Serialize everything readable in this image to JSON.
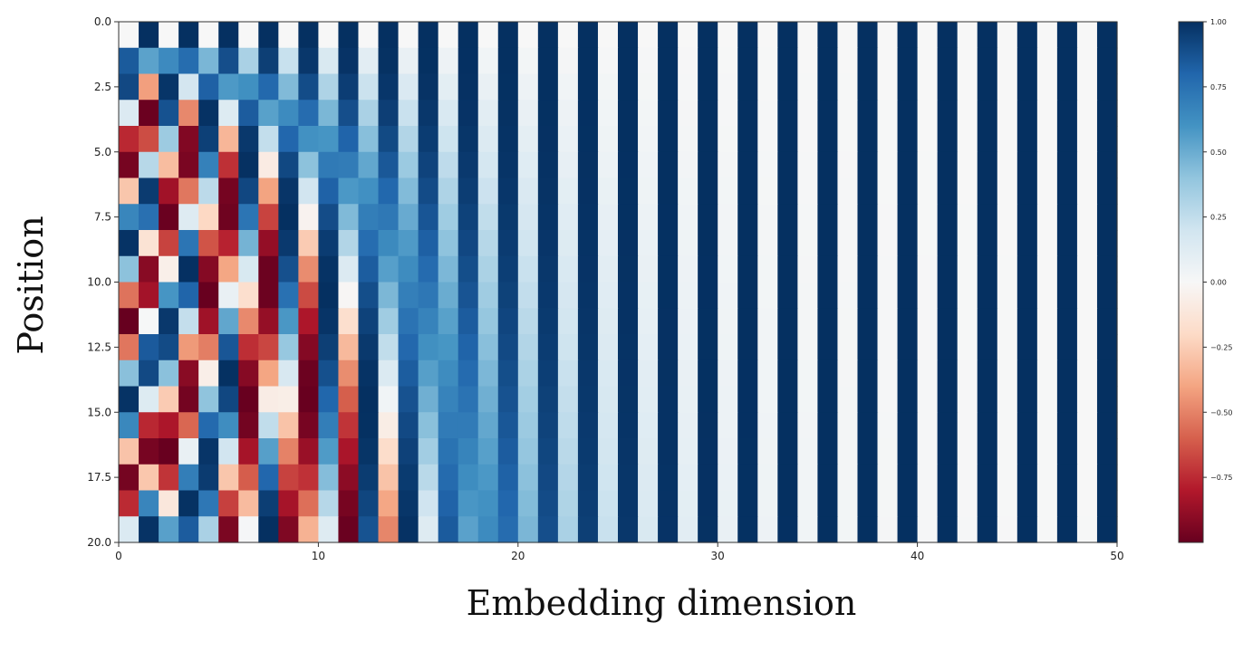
{
  "chart_data": {
    "type": "heatmap",
    "title": "",
    "xlabel": "Embedding dimension",
    "ylabel": "Position",
    "positions": 20,
    "dimensions": 50,
    "xlim": [
      0,
      50
    ],
    "ylim": [
      20.0,
      0.0
    ],
    "x_ticks": [
      "0",
      "10",
      "20",
      "30",
      "40",
      "50"
    ],
    "y_ticks": [
      "0.0",
      "2.5",
      "5.0",
      "7.5",
      "10.0",
      "12.5",
      "15.0",
      "17.5",
      "20.0"
    ],
    "value_formula": "sinusoidal positional encoding: even dimension 2i = sin(pos / 10000^(2i/50)), odd dimension 2i+1 = cos(pos / 10000^(2i/50))",
    "colormap": "RdBu",
    "colormap_stops": [
      "#67001f",
      "#b2182b",
      "#d6604d",
      "#f4a582",
      "#fddbc7",
      "#f7f7f7",
      "#d1e5f0",
      "#92c5de",
      "#4393c3",
      "#2166ac",
      "#053061"
    ],
    "colorbar": {
      "range": [
        -1.0,
        1.0
      ],
      "ticks": [
        "1.00",
        "0.75",
        "0.50",
        "0.25",
        "0.00",
        "−0.25",
        "−0.50",
        "−0.75"
      ]
    }
  }
}
